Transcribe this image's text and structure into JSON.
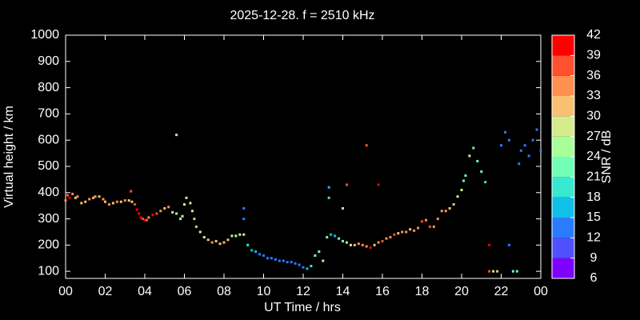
{
  "chart_data": {
    "type": "scatter",
    "title": "2025-12-28. f = 2510 kHz",
    "x_label": "UT Time / hrs",
    "y_label": "Virtual height / km",
    "xlim": [
      0,
      24
    ],
    "xticks": [
      {
        "value": 0,
        "label": "00"
      },
      {
        "value": 2,
        "label": "02"
      },
      {
        "value": 4,
        "label": "04"
      },
      {
        "value": 6,
        "label": "06"
      },
      {
        "value": 8,
        "label": "08"
      },
      10,
      12,
      14,
      16,
      18,
      20,
      22,
      {
        "value": 24,
        "label": "00"
      }
    ],
    "ylim": [
      73,
      1000
    ],
    "yticks": [
      100,
      200,
      300,
      400,
      500,
      600,
      700,
      800,
      900,
      1000
    ],
    "colorbar": {
      "label": "SNR / dB",
      "lim": [
        6,
        42
      ],
      "ticks": [
        6,
        9,
        12,
        15,
        18,
        21,
        24,
        27,
        30,
        33,
        36,
        39,
        42
      ],
      "colors": [
        "#8000ff",
        "#5050ff",
        "#2a7cff",
        "#10c0e8",
        "#38e8d0",
        "#70ffb4",
        "#a8ff98",
        "#d4ec8c",
        "#f8c070",
        "#ff9050",
        "#ff5030",
        "#ff0000"
      ]
    },
    "series": [
      {
        "x": [
          0.0,
          0.1,
          0.2,
          0.35,
          0.5,
          0.6,
          0.8,
          1.0,
          1.2,
          1.4,
          1.5,
          1.7,
          1.9,
          2.0,
          2.2,
          2.4,
          2.6,
          2.8,
          3.0,
          3.2,
          3.35,
          3.5,
          3.6,
          3.7,
          3.8,
          3.9,
          4.0,
          4.1,
          4.2,
          4.4,
          4.6,
          4.8,
          5.0,
          5.2,
          5.4,
          5.6,
          5.8,
          5.9,
          6.0,
          6.1,
          6.3,
          6.4,
          6.5,
          6.6,
          6.8,
          7.0,
          7.2,
          7.4,
          7.6,
          7.8,
          8.0,
          8.2,
          8.4,
          8.6,
          8.8,
          9.0,
          9.2,
          9.4,
          9.6,
          9.8,
          10.0,
          10.2,
          10.4,
          10.6,
          10.8,
          11.0,
          11.2,
          11.4,
          11.6,
          11.8,
          12.0,
          12.2,
          12.4,
          12.6,
          12.8,
          13.0,
          13.2,
          13.4,
          13.6,
          13.8,
          14.0,
          14.2,
          14.4,
          14.6,
          14.8,
          15.0,
          15.2,
          15.4,
          15.6,
          15.8,
          16.0,
          16.2,
          16.4,
          16.6,
          16.8,
          17.0,
          17.2,
          17.4,
          17.6,
          17.8,
          18.0,
          18.2,
          18.4,
          18.6,
          18.8,
          19.0,
          19.2,
          19.4,
          19.6,
          19.8,
          20.0,
          20.1,
          20.2,
          20.4,
          20.6,
          20.8,
          21.0,
          21.2,
          21.4,
          21.6,
          21.8,
          22.0,
          22.2,
          22.4,
          22.6,
          22.8,
          23.0,
          23.2,
          23.4,
          23.6,
          23.8,
          24.0,
          5.6,
          13.3,
          13.3,
          14.2,
          15.2,
          15.8,
          21.4,
          22.4,
          9.0,
          9.0,
          3.3,
          14.0,
          22.9
        ],
        "y": [
          370,
          390,
          380,
          395,
          380,
          385,
          360,
          365,
          375,
          380,
          385,
          385,
          375,
          365,
          355,
          360,
          365,
          365,
          370,
          370,
          365,
          355,
          335,
          320,
          305,
          300,
          295,
          295,
          305,
          315,
          320,
          330,
          340,
          345,
          325,
          320,
          300,
          310,
          355,
          380,
          360,
          330,
          300,
          270,
          250,
          230,
          220,
          210,
          215,
          205,
          210,
          220,
          235,
          235,
          240,
          240,
          200,
          180,
          175,
          165,
          160,
          150,
          150,
          145,
          140,
          140,
          135,
          135,
          130,
          125,
          115,
          110,
          120,
          160,
          175,
          140,
          230,
          240,
          235,
          225,
          215,
          210,
          200,
          200,
          205,
          200,
          195,
          190,
          200,
          210,
          215,
          225,
          230,
          240,
          245,
          250,
          250,
          260,
          255,
          265,
          290,
          295,
          270,
          270,
          300,
          330,
          330,
          340,
          355,
          385,
          410,
          445,
          465,
          540,
          570,
          520,
          480,
          440,
          100,
          100,
          100,
          580,
          630,
          600,
          100,
          100,
          560,
          580,
          540,
          600,
          640,
          560,
          620,
          420,
          380,
          430,
          580,
          430,
          200,
          200,
          340,
          300,
          405,
          340,
          510
        ],
        "snr": [
          33,
          36,
          39,
          33,
          30,
          33,
          30,
          30,
          33,
          30,
          33,
          30,
          33,
          30,
          33,
          30,
          33,
          30,
          33,
          30,
          30,
          36,
          39,
          39,
          39,
          36,
          39,
          36,
          33,
          39,
          36,
          33,
          30,
          33,
          27,
          24,
          24,
          27,
          27,
          27,
          27,
          27,
          30,
          30,
          27,
          27,
          30,
          33,
          30,
          30,
          30,
          30,
          24,
          24,
          27,
          27,
          18,
          15,
          15,
          12,
          12,
          12,
          12,
          12,
          12,
          12,
          12,
          12,
          12,
          12,
          12,
          15,
          18,
          21,
          21,
          24,
          21,
          15,
          15,
          21,
          21,
          24,
          27,
          30,
          33,
          33,
          33,
          39,
          30,
          33,
          36,
          33,
          33,
          36,
          30,
          33,
          33,
          30,
          33,
          33,
          36,
          33,
          36,
          33,
          33,
          33,
          33,
          30,
          30,
          27,
          27,
          21,
          21,
          27,
          21,
          21,
          21,
          18,
          36,
          27,
          30,
          12,
          12,
          12,
          21,
          21,
          12,
          12,
          12,
          12,
          12,
          12,
          24,
          15,
          18,
          36,
          36,
          39,
          39,
          12,
          12,
          12,
          36,
          24,
          12
        ]
      }
    ]
  }
}
